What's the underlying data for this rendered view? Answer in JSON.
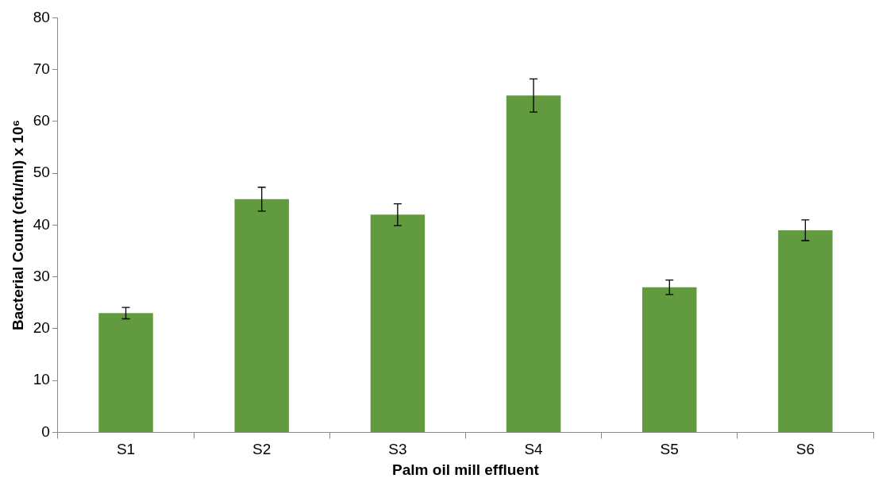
{
  "chart_data": {
    "type": "bar",
    "xlabel": "Palm oil mill effluent",
    "ylabel": "Bacterial Count (cfu/ml) x 10⁶",
    "categories": [
      "S1",
      "S2",
      "S3",
      "S4",
      "S5",
      "S6"
    ],
    "values": [
      23,
      45,
      42,
      65,
      28,
      39
    ],
    "errors": [
      1.1,
      2.3,
      2.1,
      3.2,
      1.4,
      2.0
    ],
    "color": "#629a3f",
    "ylim": [
      0,
      80
    ],
    "yticks": [
      0,
      10,
      20,
      30,
      40,
      50,
      60,
      70,
      80
    ],
    "grid": false,
    "legend": false
  }
}
